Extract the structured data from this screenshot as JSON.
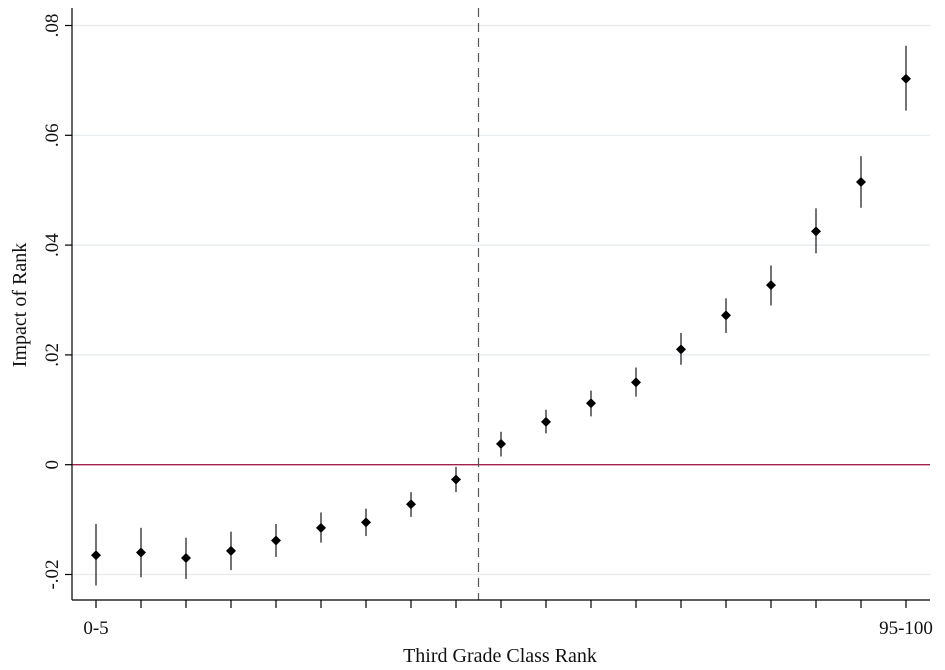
{
  "chart_data": {
    "type": "scatter",
    "xlabel": "Third Grade Class Rank",
    "ylabel": "Impact of Rank",
    "x_tick_labels": [
      {
        "index": 0,
        "label": "0-5"
      },
      {
        "index": 18,
        "label": "95-100"
      }
    ],
    "x_categories": 19,
    "ylim": [
      -0.025,
      0.082
    ],
    "y_ticks": [
      {
        "value": -0.02,
        "label": "-.02"
      },
      {
        "value": 0.0,
        "label": "0"
      },
      {
        "value": 0.02,
        "label": ".02"
      },
      {
        "value": 0.04,
        "label": ".04"
      },
      {
        "value": 0.06,
        "label": ".06"
      },
      {
        "value": 0.08,
        "label": ".08"
      }
    ],
    "grid": true,
    "reference_lines": {
      "horizontal_zero": {
        "value": 0,
        "color": "#a0214a"
      },
      "vertical_dashed_between_index": [
        8,
        9
      ]
    },
    "series": [
      {
        "points": [
          {
            "x": 0,
            "y": -0.0165,
            "lo": -0.022,
            "hi": -0.0108
          },
          {
            "x": 1,
            "y": -0.016,
            "lo": -0.0205,
            "hi": -0.0115
          },
          {
            "x": 2,
            "y": -0.017,
            "lo": -0.0208,
            "hi": -0.0133
          },
          {
            "x": 3,
            "y": -0.0157,
            "lo": -0.0192,
            "hi": -0.0122
          },
          {
            "x": 4,
            "y": -0.0138,
            "lo": -0.0168,
            "hi": -0.0108
          },
          {
            "x": 5,
            "y": -0.0115,
            "lo": -0.0142,
            "hi": -0.0087
          },
          {
            "x": 6,
            "y": -0.0105,
            "lo": -0.013,
            "hi": -0.008
          },
          {
            "x": 7,
            "y": -0.0072,
            "lo": -0.0095,
            "hi": -0.005
          },
          {
            "x": 8,
            "y": -0.0027,
            "lo": -0.005,
            "hi": -0.0004
          },
          {
            "x": 9,
            "y": 0.0038,
            "lo": 0.0015,
            "hi": 0.006
          },
          {
            "x": 10,
            "y": 0.0078,
            "lo": 0.0057,
            "hi": 0.01
          },
          {
            "x": 11,
            "y": 0.0112,
            "lo": 0.0088,
            "hi": 0.0135
          },
          {
            "x": 12,
            "y": 0.015,
            "lo": 0.0124,
            "hi": 0.0177
          },
          {
            "x": 13,
            "y": 0.021,
            "lo": 0.0182,
            "hi": 0.024
          },
          {
            "x": 14,
            "y": 0.0272,
            "lo": 0.024,
            "hi": 0.0303
          },
          {
            "x": 15,
            "y": 0.0327,
            "lo": 0.029,
            "hi": 0.0363
          },
          {
            "x": 16,
            "y": 0.0425,
            "lo": 0.0385,
            "hi": 0.0467
          },
          {
            "x": 17,
            "y": 0.0515,
            "lo": 0.0468,
            "hi": 0.0562
          },
          {
            "x": 18,
            "y": 0.0703,
            "lo": 0.0645,
            "hi": 0.0763
          }
        ]
      }
    ],
    "colors": {
      "marker": "#000000",
      "errorbar": "#000000",
      "zero_line": "#a0214a",
      "grid": "#e6ebef",
      "axis": "#000000",
      "dashed_line": "#555555"
    }
  }
}
